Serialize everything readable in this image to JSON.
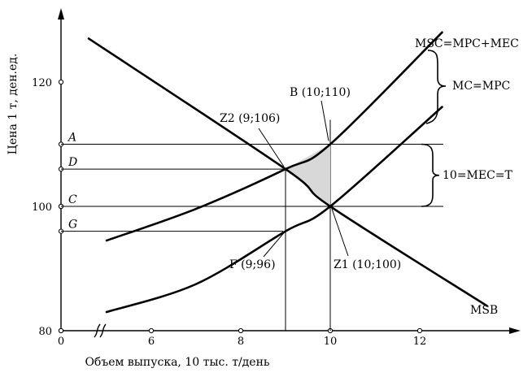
{
  "chart_data": {
    "type": "line",
    "ylabel": "Цена 1 т, ден.ед.",
    "xlabel": "Объем выпуска, 10 тыс. т/день",
    "x_ticks": [
      "0",
      "6",
      "8",
      "10",
      "12"
    ],
    "y_ticks": [
      "80",
      "100",
      "120"
    ],
    "y_letters": [
      {
        "label": "A",
        "y": 110
      },
      {
        "label": "D",
        "y": 106
      },
      {
        "label": "C",
        "y": 100
      },
      {
        "label": "G",
        "y": 96
      }
    ],
    "series": [
      {
        "name": "MSC=MPC+MEC",
        "points": [
          [
            5,
            94.5
          ],
          [
            7,
            99.6
          ],
          [
            9,
            106
          ],
          [
            10,
            110
          ],
          [
            12.5,
            128
          ]
        ]
      },
      {
        "name": "MC=MPC",
        "points": [
          [
            5,
            83
          ],
          [
            7,
            87.5
          ],
          [
            9,
            96
          ],
          [
            10,
            100
          ],
          [
            12.5,
            116
          ]
        ]
      },
      {
        "name": "MSB",
        "points": [
          [
            4.6,
            127
          ],
          [
            9,
            106
          ],
          [
            10,
            100
          ],
          [
            13.5,
            84
          ]
        ]
      }
    ],
    "points": [
      {
        "label": "Z2 (9;106)",
        "x": 9,
        "y": 106
      },
      {
        "label": "B (10;110)",
        "x": 10,
        "y": 110
      },
      {
        "label": "Z1 (10;100)",
        "x": 10,
        "y": 100
      },
      {
        "label": "F (9;96)",
        "x": 9,
        "y": 96
      }
    ],
    "annotations": [
      "MSC=MPC+MEC",
      "MC=MPC",
      "10=MEC=T",
      "MSB"
    ],
    "shaded_region": [
      [
        9,
        106
      ],
      [
        10,
        110
      ],
      [
        10,
        100
      ]
    ]
  }
}
